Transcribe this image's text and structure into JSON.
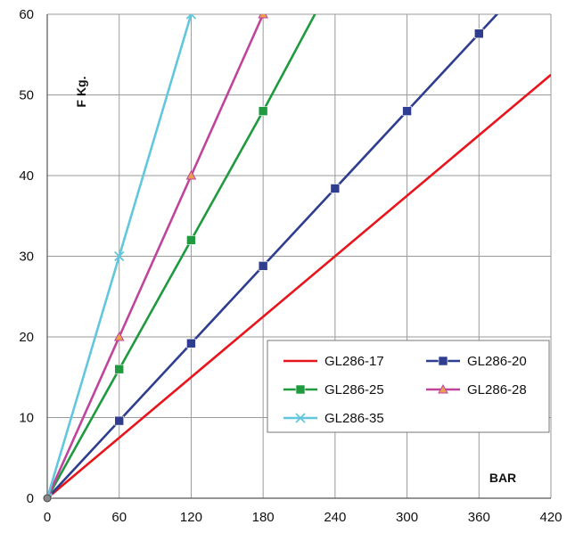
{
  "chart_data": {
    "type": "line",
    "title": "",
    "xlabel": "BAR",
    "ylabel": "F Kg.",
    "xlim": [
      0,
      420
    ],
    "ylim": [
      0,
      60
    ],
    "xticks": [
      0,
      60,
      120,
      180,
      240,
      300,
      360,
      420
    ],
    "yticks": [
      0,
      10,
      20,
      30,
      40,
      50,
      60
    ],
    "grid": true,
    "legend_position": "bottom-right",
    "series": [
      {
        "name": "GL286-17",
        "color": "#e8151c",
        "marker": "none",
        "x": [
          0,
          420
        ],
        "y": [
          0,
          52.5
        ]
      },
      {
        "name": "GL286-20",
        "color": "#2e3d8f",
        "marker": "square",
        "x": [
          0,
          60,
          120,
          180,
          240,
          300,
          360,
          380
        ],
        "y": [
          0,
          9.6,
          19.2,
          28.8,
          38.4,
          48,
          57.6,
          60.8
        ]
      },
      {
        "name": "GL286-25",
        "color": "#1f9a3e",
        "marker": "square",
        "x": [
          0,
          60,
          120,
          180,
          225
        ],
        "y": [
          0,
          16,
          32,
          48,
          60.5
        ]
      },
      {
        "name": "GL286-28",
        "color": "#c0449c",
        "marker": "triangle",
        "x": [
          0,
          60,
          120,
          180
        ],
        "y": [
          0,
          20,
          40,
          60
        ]
      },
      {
        "name": "GL286-35",
        "color": "#62c7dd",
        "marker": "x",
        "x": [
          0,
          60,
          120
        ],
        "y": [
          0,
          30,
          60
        ]
      }
    ]
  }
}
